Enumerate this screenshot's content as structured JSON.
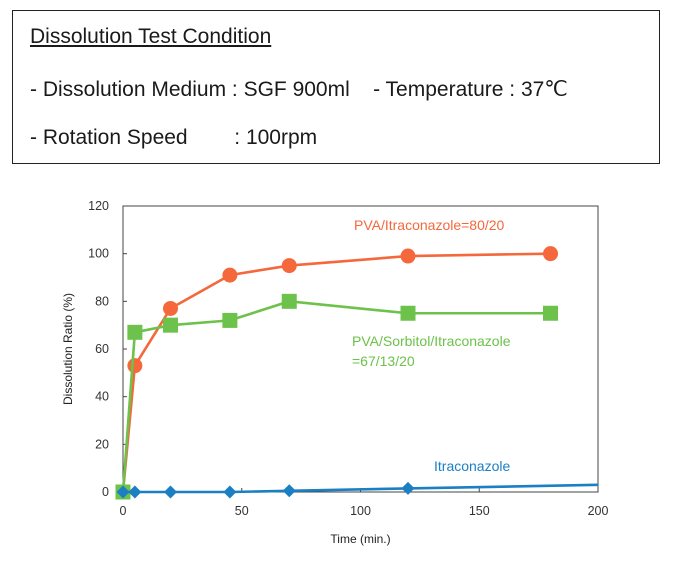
{
  "condition": {
    "title": "Dissolution Test Condition",
    "line1": "- Dissolution Medium : SGF 900ml    - Temperature : 37℃",
    "line2": "- Rotation Speed        : 100rpm"
  },
  "chart_data": {
    "type": "line",
    "xlabel": "Time (min.)",
    "ylabel": "Dissolution Ratio (%)",
    "xlim": [
      0,
      200
    ],
    "ylim": [
      0,
      120
    ],
    "xticks": [
      0,
      50,
      100,
      150,
      200
    ],
    "yticks": [
      0,
      20,
      40,
      60,
      80,
      100,
      120
    ],
    "grid": false,
    "series": [
      {
        "name": "PVA/Itraconazole=80/20",
        "color": "#f4683c",
        "marker": "circle",
        "x": [
          0,
          5,
          20,
          45,
          70,
          120,
          180
        ],
        "y": [
          0,
          53,
          77,
          91,
          95,
          99,
          100
        ]
      },
      {
        "name": "PVA/Sorbitol/Itraconazole =67/13/20",
        "color": "#6cc24a",
        "marker": "square",
        "x": [
          0,
          5,
          20,
          45,
          70,
          120,
          180
        ],
        "y": [
          0,
          67,
          70,
          72,
          80,
          75,
          75
        ]
      },
      {
        "name": "Itraconazole",
        "color": "#1b7fc4",
        "marker": "diamond",
        "x": [
          0,
          5,
          20,
          45,
          70,
          120,
          200
        ],
        "y": [
          0,
          0,
          0,
          0,
          0.5,
          1.5,
          3
        ],
        "marker_count": 6
      }
    ],
    "annotations": [
      {
        "lines": [
          "PVA/Itraconazole=80/20"
        ],
        "color": "#f4683c"
      },
      {
        "lines": [
          "PVA/Sorbitol/Itraconazole",
          "=67/13/20"
        ],
        "color": "#6cc24a"
      },
      {
        "lines": [
          "Itraconazole"
        ],
        "color": "#1b7fc4"
      }
    ]
  }
}
